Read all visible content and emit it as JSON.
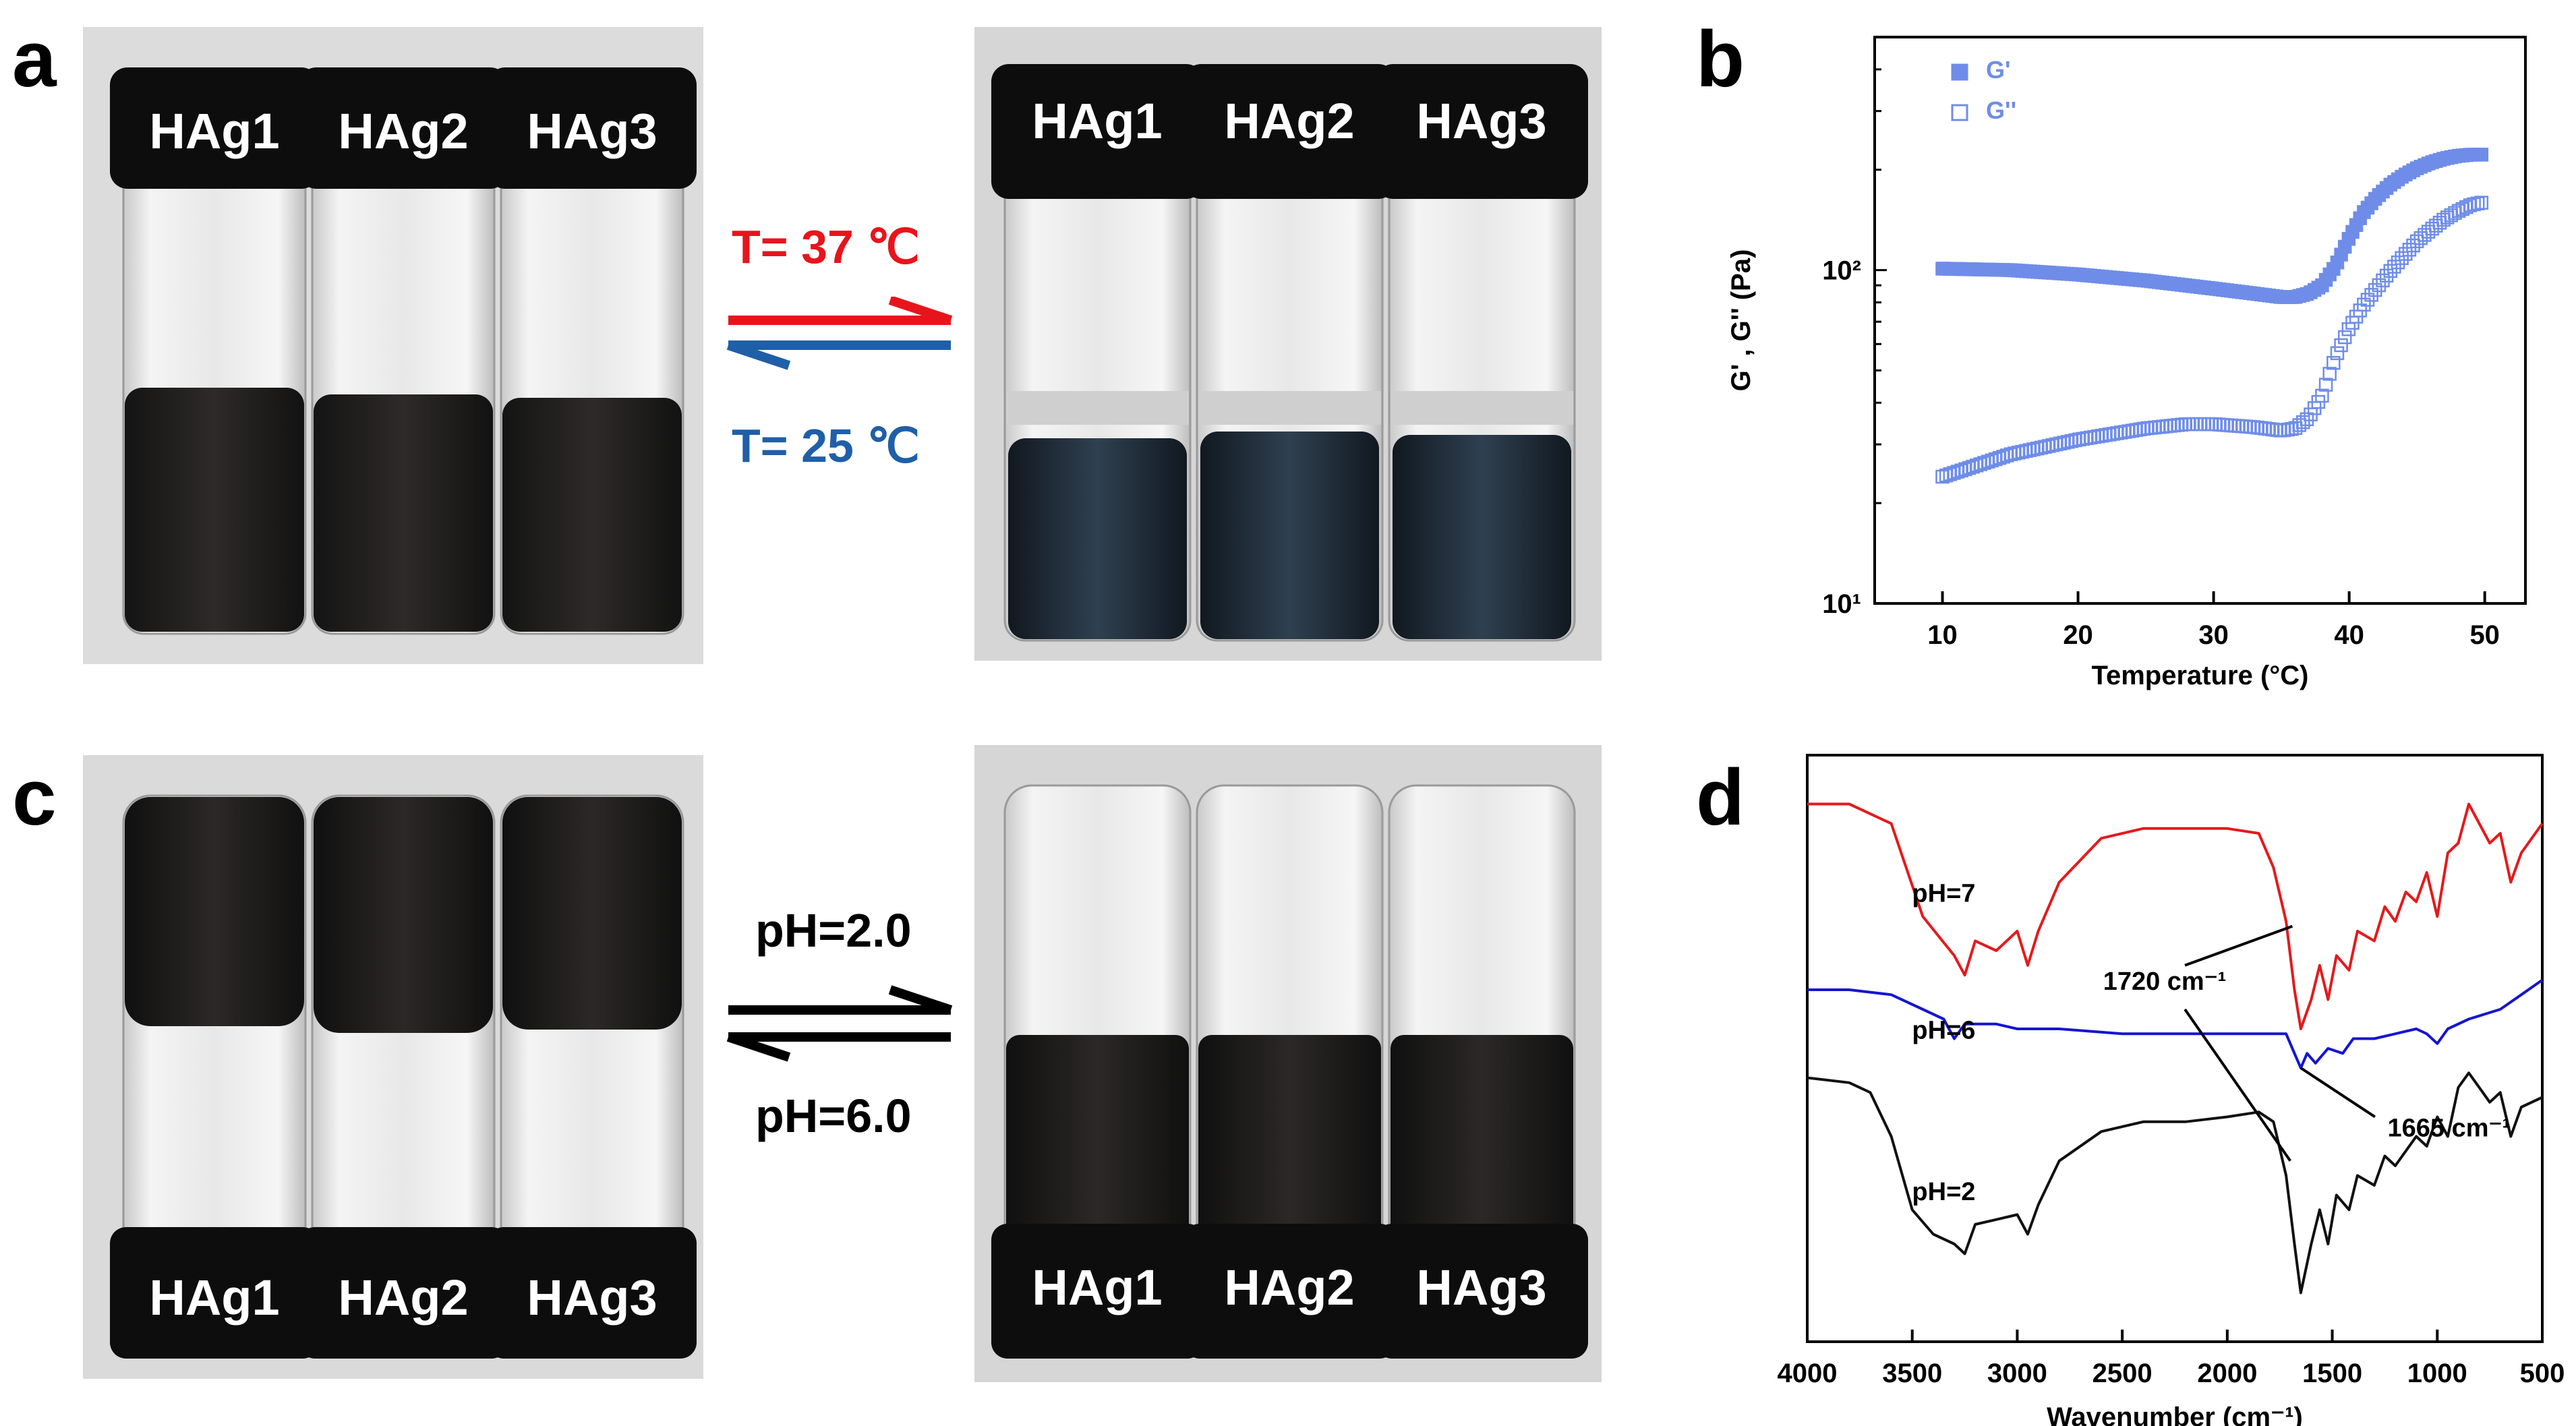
{
  "panels": {
    "a": {
      "letter": "a",
      "left_vials": [
        "HAg1",
        "HAg2",
        "HAg3"
      ],
      "right_vials": [
        "HAg1",
        "HAg2",
        "HAg3"
      ],
      "forward_label": "T= 37 ℃",
      "reverse_label": "T= 25 ℃",
      "forward_color": "#e8141c",
      "reverse_color": "#1f5fa8"
    },
    "b": {
      "letter": "b"
    },
    "c": {
      "letter": "c",
      "left_vials": [
        "HAg1",
        "HAg2",
        "HAg3"
      ],
      "right_vials": [
        "HAg1",
        "HAg2",
        "HAg3"
      ],
      "forward_label": "pH=2.0",
      "reverse_label": "pH=6.0"
    },
    "d": {
      "letter": "d"
    }
  },
  "chart_data": [
    {
      "type": "scatter",
      "panel": "b",
      "xlabel": "Temperature (°C)",
      "ylabel": "G' , G'' (Pa)",
      "xlim": [
        5,
        53
      ],
      "ylim": [
        10,
        500
      ],
      "log_y": true,
      "x_ticks": [
        10,
        20,
        30,
        40,
        50
      ],
      "y_ticks": [
        {
          "value": 10,
          "label": "10¹"
        },
        {
          "value": 100,
          "label": "10²"
        }
      ],
      "legend_position": "top-left",
      "series": [
        {
          "name": "G'",
          "marker": "filled-square",
          "color": "#6f8de8",
          "x": [
            10,
            15,
            20,
            25,
            30,
            33,
            35,
            36,
            37,
            38,
            39,
            40,
            41,
            42,
            43,
            44,
            45,
            46,
            47,
            48,
            49,
            50
          ],
          "y": [
            101,
            100,
            97,
            93,
            88,
            85,
            83,
            83,
            85,
            90,
            103,
            125,
            148,
            165,
            180,
            192,
            202,
            210,
            216,
            220,
            222,
            222
          ]
        },
        {
          "name": "G''",
          "marker": "open-square",
          "color": "#6f8de8",
          "x": [
            10,
            15,
            20,
            25,
            28,
            30,
            33,
            35,
            36,
            37,
            38,
            39,
            40,
            41,
            42,
            43,
            44,
            45,
            46,
            47,
            48,
            49,
            50
          ],
          "y": [
            24,
            28,
            31,
            33.5,
            34.5,
            34.5,
            33.8,
            33,
            33.5,
            36,
            42,
            55,
            67,
            78,
            88,
            99,
            110,
            122,
            132,
            142,
            150,
            157,
            160
          ]
        }
      ]
    },
    {
      "type": "line",
      "panel": "d",
      "xlabel": "Wavenumber (cm⁻¹)",
      "xlim": [
        4000,
        500
      ],
      "x_ticks": [
        4000,
        3500,
        3000,
        2500,
        2000,
        1500,
        1000,
        500
      ],
      "series": [
        {
          "name": "pH=7",
          "color": "#e31a1c",
          "points": [
            [
              4000,
              0.78
            ],
            [
              3800,
              0.78
            ],
            [
              3600,
              0.74
            ],
            [
              3450,
              0.55
            ],
            [
              3300,
              0.47
            ],
            [
              3250,
              0.43
            ],
            [
              3200,
              0.5
            ],
            [
              3100,
              0.48
            ],
            [
              3000,
              0.52
            ],
            [
              2950,
              0.45
            ],
            [
              2900,
              0.52
            ],
            [
              2800,
              0.62
            ],
            [
              2600,
              0.71
            ],
            [
              2400,
              0.73
            ],
            [
              2200,
              0.73
            ],
            [
              2000,
              0.73
            ],
            [
              1850,
              0.72
            ],
            [
              1780,
              0.65
            ],
            [
              1720,
              0.54
            ],
            [
              1680,
              0.4
            ],
            [
              1650,
              0.32
            ],
            [
              1600,
              0.38
            ],
            [
              1560,
              0.45
            ],
            [
              1520,
              0.38
            ],
            [
              1480,
              0.47
            ],
            [
              1420,
              0.44
            ],
            [
              1380,
              0.52
            ],
            [
              1300,
              0.5
            ],
            [
              1250,
              0.57
            ],
            [
              1200,
              0.54
            ],
            [
              1150,
              0.6
            ],
            [
              1100,
              0.58
            ],
            [
              1050,
              0.64
            ],
            [
              1000,
              0.55
            ],
            [
              950,
              0.68
            ],
            [
              900,
              0.7
            ],
            [
              850,
              0.78
            ],
            [
              800,
              0.74
            ],
            [
              750,
              0.7
            ],
            [
              700,
              0.72
            ],
            [
              650,
              0.62
            ],
            [
              600,
              0.68
            ],
            [
              500,
              0.74
            ]
          ]
        },
        {
          "name": "pH=6",
          "color": "#1515d0",
          "points": [
            [
              4000,
              0.4
            ],
            [
              3800,
              0.4
            ],
            [
              3600,
              0.39
            ],
            [
              3450,
              0.36
            ],
            [
              3350,
              0.34
            ],
            [
              3300,
              0.3
            ],
            [
              3250,
              0.33
            ],
            [
              3100,
              0.33
            ],
            [
              3000,
              0.32
            ],
            [
              2800,
              0.32
            ],
            [
              2500,
              0.31
            ],
            [
              2200,
              0.31
            ],
            [
              2000,
              0.31
            ],
            [
              1800,
              0.31
            ],
            [
              1720,
              0.31
            ],
            [
              1680,
              0.27
            ],
            [
              1650,
              0.24
            ],
            [
              1620,
              0.27
            ],
            [
              1580,
              0.25
            ],
            [
              1520,
              0.28
            ],
            [
              1450,
              0.27
            ],
            [
              1400,
              0.3
            ],
            [
              1300,
              0.3
            ],
            [
              1200,
              0.31
            ],
            [
              1100,
              0.32
            ],
            [
              1050,
              0.31
            ],
            [
              1000,
              0.29
            ],
            [
              950,
              0.32
            ],
            [
              850,
              0.34
            ],
            [
              700,
              0.36
            ],
            [
              600,
              0.39
            ],
            [
              500,
              0.42
            ]
          ]
        },
        {
          "name": "pH=2",
          "color": "#111111",
          "points": [
            [
              4000,
              0.22
            ],
            [
              3800,
              0.21
            ],
            [
              3700,
              0.19
            ],
            [
              3600,
              0.1
            ],
            [
              3500,
              -0.05
            ],
            [
              3400,
              -0.1
            ],
            [
              3300,
              -0.12
            ],
            [
              3250,
              -0.14
            ],
            [
              3200,
              -0.08
            ],
            [
              3100,
              -0.07
            ],
            [
              3000,
              -0.06
            ],
            [
              2950,
              -0.1
            ],
            [
              2900,
              -0.04
            ],
            [
              2800,
              0.05
            ],
            [
              2600,
              0.11
            ],
            [
              2400,
              0.13
            ],
            [
              2200,
              0.13
            ],
            [
              2000,
              0.14
            ],
            [
              1850,
              0.15
            ],
            [
              1780,
              0.13
            ],
            [
              1720,
              0.02
            ],
            [
              1680,
              -0.12
            ],
            [
              1650,
              -0.22
            ],
            [
              1600,
              -0.12
            ],
            [
              1560,
              -0.05
            ],
            [
              1520,
              -0.12
            ],
            [
              1480,
              -0.02
            ],
            [
              1420,
              -0.05
            ],
            [
              1380,
              0.02
            ],
            [
              1300,
              0.0
            ],
            [
              1250,
              0.06
            ],
            [
              1200,
              0.04
            ],
            [
              1100,
              0.1
            ],
            [
              1050,
              0.08
            ],
            [
              1000,
              0.14
            ],
            [
              950,
              0.1
            ],
            [
              900,
              0.2
            ],
            [
              850,
              0.23
            ],
            [
              800,
              0.2
            ],
            [
              750,
              0.17
            ],
            [
              700,
              0.19
            ],
            [
              650,
              0.1
            ],
            [
              600,
              0.16
            ],
            [
              500,
              0.18
            ]
          ]
        }
      ],
      "series_labels": [
        "pH=7",
        "pH=6",
        "pH=2"
      ],
      "annotations": [
        "1720 cm⁻¹",
        "1665 cm⁻¹"
      ]
    }
  ]
}
